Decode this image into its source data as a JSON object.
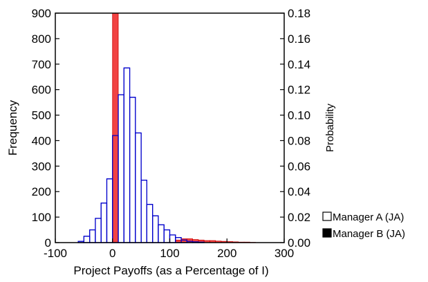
{
  "chart_data": {
    "type": "bar",
    "xlabel": "Project Payoffs (as a Percentage of I)",
    "ylabel_left": "Frequency",
    "ylabel_right": "Probability",
    "xlim": [
      -100,
      300
    ],
    "ylim_left": [
      0,
      900
    ],
    "ylim_right": [
      0,
      0.18
    ],
    "x_ticks": [
      "-100",
      "0",
      "100",
      "200",
      "300"
    ],
    "y_ticks_left": [
      "0",
      "100",
      "200",
      "300",
      "400",
      "500",
      "600",
      "700",
      "800",
      "900"
    ],
    "y_ticks_right": [
      "0.00",
      "0.02",
      "0.04",
      "0.06",
      "0.08",
      "0.10",
      "0.12",
      "0.14",
      "0.16",
      "0.18"
    ],
    "bin_width": 10,
    "series": [
      {
        "name": "Manager A (JA)",
        "style": "hollow",
        "color": "#0000cc",
        "bin_starts": [
          -60,
          -50,
          -40,
          -30,
          -20,
          -10,
          0,
          10,
          20,
          30,
          40,
          50,
          60,
          70,
          80,
          90,
          100,
          110,
          120,
          130,
          140,
          150
        ],
        "values": [
          5,
          25,
          50,
          95,
          155,
          250,
          420,
          580,
          685,
          570,
          430,
          245,
          150,
          105,
          70,
          50,
          30,
          20,
          10,
          5,
          3,
          2
        ]
      },
      {
        "name": "Manager B (JA)",
        "style": "filled",
        "color": "#ee2222",
        "bin_starts": [
          0,
          110,
          120,
          130,
          140,
          150,
          160,
          170,
          180,
          190,
          200,
          210,
          220,
          230,
          240
        ],
        "values": [
          900,
          10,
          15,
          15,
          12,
          10,
          8,
          8,
          6,
          5,
          4,
          3,
          2,
          2,
          1
        ]
      }
    ],
    "legend": {
      "placement": "bottom-right",
      "entries": [
        "Manager A (JA)",
        "Manager B (JA)"
      ]
    }
  }
}
